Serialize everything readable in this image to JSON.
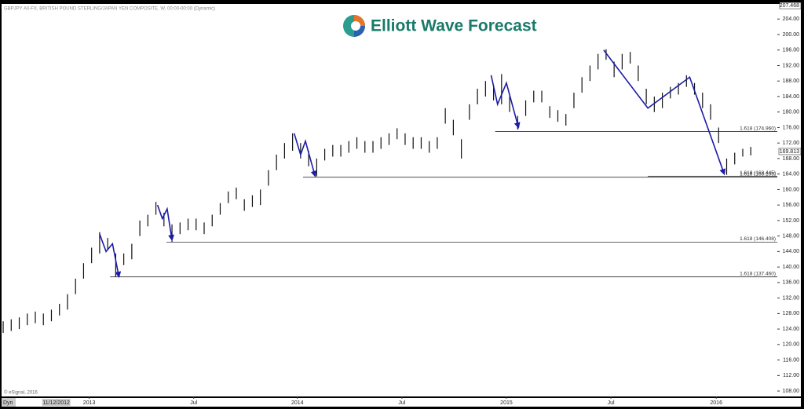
{
  "chart_data": {
    "type": "ohlc",
    "title": "GBPJPY A0-FX, BRITISH POUND STERLING/JAPAN YEN COMPOSITE, W, 00:00-00:00 (Dynamic)",
    "logo": "Elliott Wave Forecast",
    "copyright": "© eSignal, 2016",
    "mode": "Dyn",
    "color": "#111111",
    "wave_color": "#1c1ca8",
    "high": [
      126,
      126.5,
      127,
      128,
      128.5,
      128,
      129,
      130.5,
      133,
      137,
      141,
      145,
      149,
      147.5,
      143.5,
      143.5,
      146,
      152,
      153.5,
      156.8,
      154,
      151,
      151.5,
      152.5,
      152.5,
      151.5,
      153.5,
      156.5,
      159.5,
      160.5,
      157.5,
      158.5,
      160,
      165,
      169,
      172,
      174.5,
      172,
      170,
      168,
      170.5,
      171.5,
      171.5,
      172.5,
      173.5,
      172.5,
      172.5,
      173.5,
      174.5,
      175.8,
      174.5,
      173.5,
      173.5,
      172.5,
      173.5,
      181,
      178,
      173,
      182,
      186,
      188,
      187,
      189.8,
      184,
      179,
      183,
      185.5,
      185.5,
      181.5,
      180.5,
      179.5,
      185,
      189,
      192,
      195,
      196.2,
      193,
      195,
      195.5,
      192,
      186,
      184,
      185,
      186.5,
      187.5,
      189.5,
      187.5,
      185,
      182,
      176,
      168,
      169.5,
      170.5,
      171
    ],
    "low": [
      123,
      123.5,
      124,
      125,
      125.5,
      125,
      126,
      127.5,
      129,
      133,
      137,
      141,
      143.5,
      144.5,
      137.5,
      140.5,
      142,
      148,
      150.5,
      153.5,
      150.5,
      146.5,
      148.5,
      149.5,
      149.5,
      148.5,
      150.5,
      153.5,
      156.5,
      157.5,
      154.5,
      155.5,
      156,
      161,
      165,
      168,
      170,
      168,
      166,
      163.4,
      167.5,
      168.5,
      168.5,
      169.5,
      170.5,
      169.5,
      169.5,
      170.5,
      171.5,
      173,
      171.5,
      170.5,
      170.5,
      169.5,
      170.5,
      177,
      174,
      168,
      178,
      182,
      184,
      183,
      182,
      180,
      175.5,
      179,
      182.5,
      182.5,
      178.5,
      177.5,
      176.5,
      181,
      185,
      188,
      191,
      193.5,
      189,
      191,
      192.5,
      188,
      182,
      180,
      181,
      183.5,
      184.5,
      186.5,
      184.5,
      181,
      178,
      172,
      163.8,
      166.5,
      168.5,
      168.8
    ],
    "axis_top": 207.468,
    "last_price": 169.813,
    "ylim": [
      106.6,
      207.9
    ],
    "xlim": [
      -0.2,
      96.3
    ],
    "yticks": [
      {
        "value": 108,
        "label": "108.00"
      },
      {
        "value": 112,
        "label": "112.00"
      },
      {
        "value": 116,
        "label": "116.00"
      },
      {
        "value": 120,
        "label": "120.00"
      },
      {
        "value": 124,
        "label": "124.00"
      },
      {
        "value": 128,
        "label": "128.00"
      },
      {
        "value": 132,
        "label": "132.00"
      },
      {
        "value": 136,
        "label": "136.00"
      },
      {
        "value": 140,
        "label": "140.00"
      },
      {
        "value": 144,
        "label": "144.00"
      },
      {
        "value": 148,
        "label": "148.00"
      },
      {
        "value": 152,
        "label": "152.00"
      },
      {
        "value": 156,
        "label": "156.00"
      },
      {
        "value": 160,
        "label": "160.00"
      },
      {
        "value": 164,
        "label": "164.00"
      },
      {
        "value": 168,
        "label": "168.00"
      },
      {
        "value": 172,
        "label": "172.00"
      },
      {
        "value": 176,
        "label": "176.00"
      },
      {
        "value": 180,
        "label": "180.00"
      },
      {
        "value": 184,
        "label": "184.00"
      },
      {
        "value": 188,
        "label": "188.00"
      },
      {
        "value": 192,
        "label": "192.00"
      },
      {
        "value": 196,
        "label": "196.00"
      },
      {
        "value": 200,
        "label": "200.00"
      },
      {
        "value": 204,
        "label": "204.00"
      }
    ],
    "xticks": [
      {
        "value": 10.7,
        "label": "2013"
      },
      {
        "value": 23.7,
        "label": "Jul"
      },
      {
        "value": 36.6,
        "label": "2014"
      },
      {
        "value": 49.6,
        "label": "Jul"
      },
      {
        "value": 62.6,
        "label": "2015"
      },
      {
        "value": 75.6,
        "label": "Jul"
      },
      {
        "value": 88.7,
        "label": "2016"
      }
    ],
    "cursor_date": {
      "value": 6.6,
      "label": "11/12/2012"
    },
    "levels": [
      {
        "value": 174.96,
        "label": "1.618 (174.960)",
        "start": 61.2
      },
      {
        "value": 163.165,
        "label": "1.618 (163.165)",
        "start": 37.3
      },
      {
        "value": 163.445,
        "label": "1.618 (163.445)",
        "start": 80.2
      },
      {
        "value": 146.408,
        "label": "1.618 (146.408)",
        "start": 20.3
      },
      {
        "value": 137.46,
        "label": "1.618 (137.460)",
        "start": 13.3
      }
    ],
    "waves": [
      {
        "x": [
          12,
          12.8,
          13.6,
          14.4
        ],
        "y": [
          148.5,
          144,
          146,
          137.5
        ]
      },
      {
        "x": [
          19.2,
          19.8,
          20.4,
          21
        ],
        "y": [
          156,
          152.5,
          155,
          147
        ]
      },
      {
        "x": [
          36.2,
          37,
          37.6,
          38.8
        ],
        "y": [
          174.5,
          169,
          172.5,
          163.5
        ]
      },
      {
        "x": [
          60.7,
          61.5,
          62.6,
          64.1
        ],
        "y": [
          189.5,
          182,
          187.5,
          176
        ]
      },
      {
        "x": [
          74.7,
          80.2,
          85.4,
          89.7
        ],
        "y": [
          196,
          181,
          189,
          164
        ]
      }
    ]
  }
}
